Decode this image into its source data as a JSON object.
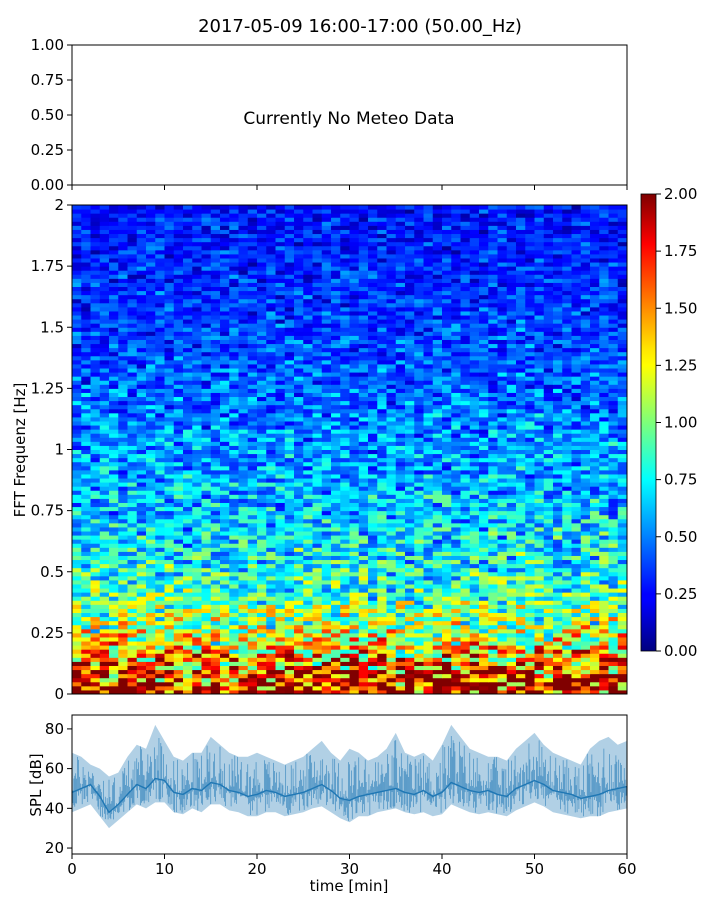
{
  "figure": {
    "title": "2017-05-09 16:00-17:00 (50.00_Hz)"
  },
  "chart_data": [
    {
      "type": "line",
      "panel": "meteo",
      "annotation": "Currently No Meteo Data",
      "ylim": [
        0.0,
        1.0
      ],
      "y_ticks": [
        "0.00",
        "0.25",
        "0.50",
        "0.75",
        "1.00"
      ],
      "x_ticks_labeled": false,
      "series": []
    },
    {
      "type": "heatmap",
      "panel": "spectrogram",
      "ylabel": "FFT Frequenz [Hz]",
      "xlim": [
        0,
        60
      ],
      "ylim": [
        0,
        2
      ],
      "y_ticks": [
        "0",
        "0.25",
        "0.5",
        "0.75",
        "1",
        "1.25",
        "1.5",
        "1.75",
        "2"
      ],
      "colormap": "jet",
      "colorbar": {
        "range": [
          0.0,
          2.0
        ],
        "ticks": [
          "0.00",
          "0.25",
          "0.50",
          "0.75",
          "1.00",
          "1.25",
          "1.50",
          "1.75",
          "2.00"
        ]
      },
      "time_bins": 60,
      "frequency_bins": 120,
      "value_profile": {
        "frequency": [
          0,
          0.05,
          0.1,
          0.2,
          0.3,
          0.4,
          0.5,
          0.75,
          1.0,
          1.25,
          1.5,
          1.75,
          2.0
        ],
        "typical_value": [
          1.85,
          1.75,
          1.6,
          1.25,
          1.05,
          0.9,
          0.8,
          0.65,
          0.55,
          0.45,
          0.38,
          0.32,
          0.28
        ]
      }
    },
    {
      "type": "line",
      "panel": "spl",
      "ylabel": "SPL [dB]",
      "xlabel": "time [min]",
      "xlim": [
        0,
        60
      ],
      "ylim": [
        17,
        87
      ],
      "y_ticks": [
        "20",
        "40",
        "60",
        "80"
      ],
      "x_ticks": [
        "0",
        "10",
        "20",
        "30",
        "40",
        "50",
        "60"
      ],
      "color": "#1f77b4",
      "series": [
        {
          "x": [
            0,
            1,
            2,
            3,
            4,
            5,
            6,
            7,
            8,
            9,
            10,
            11,
            12,
            13,
            14,
            15,
            16,
            17,
            18,
            19,
            20,
            21,
            22,
            23,
            24,
            25,
            26,
            27,
            28,
            29,
            30,
            31,
            32,
            33,
            34,
            35,
            36,
            37,
            38,
            39,
            40,
            41,
            42,
            43,
            44,
            45,
            46,
            47,
            48,
            49,
            50,
            51,
            52,
            53,
            54,
            55,
            56,
            57,
            58,
            59,
            60
          ],
          "mean": [
            48,
            50,
            52,
            46,
            38,
            42,
            47,
            52,
            50,
            55,
            54,
            48,
            47,
            50,
            49,
            53,
            52,
            49,
            48,
            46,
            47,
            49,
            48,
            46,
            47,
            48,
            50,
            52,
            49,
            45,
            44,
            46,
            47,
            48,
            49,
            50,
            48,
            47,
            49,
            46,
            48,
            53,
            51,
            49,
            48,
            49,
            47,
            46,
            50,
            52,
            54,
            52,
            49,
            48,
            47,
            45,
            46,
            47,
            49,
            50,
            51
          ],
          "low": [
            38,
            40,
            42,
            36,
            30,
            34,
            38,
            42,
            40,
            43,
            43,
            38,
            37,
            40,
            38,
            42,
            42,
            39,
            38,
            36,
            36,
            38,
            38,
            36,
            37,
            38,
            40,
            41,
            38,
            35,
            33,
            36,
            36,
            38,
            39,
            40,
            38,
            37,
            38,
            36,
            37,
            42,
            40,
            38,
            37,
            38,
            37,
            36,
            39,
            41,
            43,
            41,
            38,
            37,
            36,
            35,
            36,
            36,
            38,
            39,
            40
          ],
          "high": [
            68,
            66,
            62,
            60,
            56,
            58,
            66,
            72,
            70,
            82,
            74,
            66,
            64,
            68,
            68,
            76,
            72,
            68,
            66,
            66,
            68,
            66,
            64,
            62,
            64,
            66,
            70,
            74,
            68,
            64,
            70,
            68,
            64,
            66,
            70,
            78,
            68,
            66,
            68,
            64,
            72,
            82,
            76,
            70,
            68,
            66,
            66,
            64,
            70,
            74,
            78,
            72,
            68,
            66,
            64,
            62,
            70,
            74,
            76,
            72,
            74
          ]
        }
      ]
    }
  ]
}
